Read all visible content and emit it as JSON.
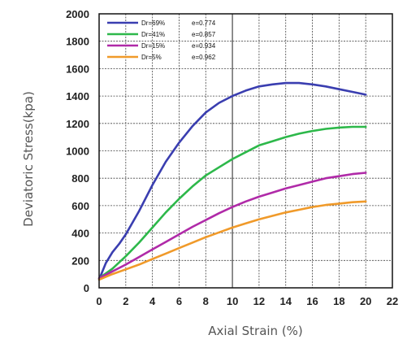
{
  "chart_data": {
    "type": "line",
    "title": "",
    "xlabel": "Axial Strain (%)",
    "ylabel": "Deviatoric Stress(kpa)",
    "xlim": [
      0,
      22
    ],
    "ylim": [
      0,
      2000
    ],
    "x_ticks": [
      0,
      2,
      4,
      6,
      8,
      10,
      12,
      14,
      16,
      18,
      20,
      22
    ],
    "y_ticks": [
      0,
      200,
      400,
      600,
      800,
      1000,
      1200,
      1400,
      1600,
      1800,
      2000
    ],
    "grid": true,
    "legend_position": "top-left",
    "series": [
      {
        "name": "Dr=69%",
        "e_label": "e=0.774",
        "color": "#3a3eb0",
        "points": [
          [
            0,
            60
          ],
          [
            0.5,
            180
          ],
          [
            1,
            260
          ],
          [
            1.5,
            320
          ],
          [
            2,
            390
          ],
          [
            3,
            560
          ],
          [
            4,
            750
          ],
          [
            5,
            920
          ],
          [
            6,
            1060
          ],
          [
            7,
            1180
          ],
          [
            8,
            1280
          ],
          [
            9,
            1350
          ],
          [
            10,
            1400
          ],
          [
            11,
            1440
          ],
          [
            12,
            1470
          ],
          [
            13,
            1485
          ],
          [
            14,
            1495
          ],
          [
            15,
            1495
          ],
          [
            16,
            1485
          ],
          [
            17,
            1470
          ],
          [
            18,
            1450
          ],
          [
            19,
            1430
          ],
          [
            20,
            1410
          ]
        ]
      },
      {
        "name": "Dr=41%",
        "e_label": "e=0.857",
        "color": "#2db84a",
        "points": [
          [
            0,
            70
          ],
          [
            1,
            140
          ],
          [
            2,
            230
          ],
          [
            3,
            330
          ],
          [
            4,
            440
          ],
          [
            5,
            550
          ],
          [
            6,
            650
          ],
          [
            7,
            740
          ],
          [
            8,
            820
          ],
          [
            9,
            880
          ],
          [
            10,
            940
          ],
          [
            11,
            990
          ],
          [
            12,
            1040
          ],
          [
            13,
            1070
          ],
          [
            14,
            1100
          ],
          [
            15,
            1125
          ],
          [
            16,
            1145
          ],
          [
            17,
            1160
          ],
          [
            18,
            1170
          ],
          [
            19,
            1175
          ],
          [
            20,
            1175
          ]
        ]
      },
      {
        "name": "Dr=15%",
        "e_label": "e=0.934",
        "color": "#b02aa8",
        "points": [
          [
            0,
            70
          ],
          [
            1,
            120
          ],
          [
            2,
            170
          ],
          [
            3,
            225
          ],
          [
            4,
            280
          ],
          [
            5,
            335
          ],
          [
            6,
            390
          ],
          [
            7,
            445
          ],
          [
            8,
            495
          ],
          [
            9,
            545
          ],
          [
            10,
            590
          ],
          [
            11,
            630
          ],
          [
            12,
            665
          ],
          [
            13,
            695
          ],
          [
            14,
            725
          ],
          [
            15,
            750
          ],
          [
            16,
            775
          ],
          [
            17,
            800
          ],
          [
            18,
            815
          ],
          [
            19,
            830
          ],
          [
            20,
            840
          ]
        ]
      },
      {
        "name": "Dr=5%",
        "e_label": "e=0.962",
        "color": "#f09a2a",
        "points": [
          [
            0,
            60
          ],
          [
            1,
            100
          ],
          [
            2,
            135
          ],
          [
            3,
            170
          ],
          [
            4,
            210
          ],
          [
            5,
            250
          ],
          [
            6,
            290
          ],
          [
            7,
            330
          ],
          [
            8,
            370
          ],
          [
            9,
            405
          ],
          [
            10,
            440
          ],
          [
            11,
            470
          ],
          [
            12,
            500
          ],
          [
            13,
            525
          ],
          [
            14,
            550
          ],
          [
            15,
            570
          ],
          [
            16,
            590
          ],
          [
            17,
            605
          ],
          [
            18,
            615
          ],
          [
            19,
            625
          ],
          [
            20,
            630
          ]
        ]
      }
    ]
  }
}
